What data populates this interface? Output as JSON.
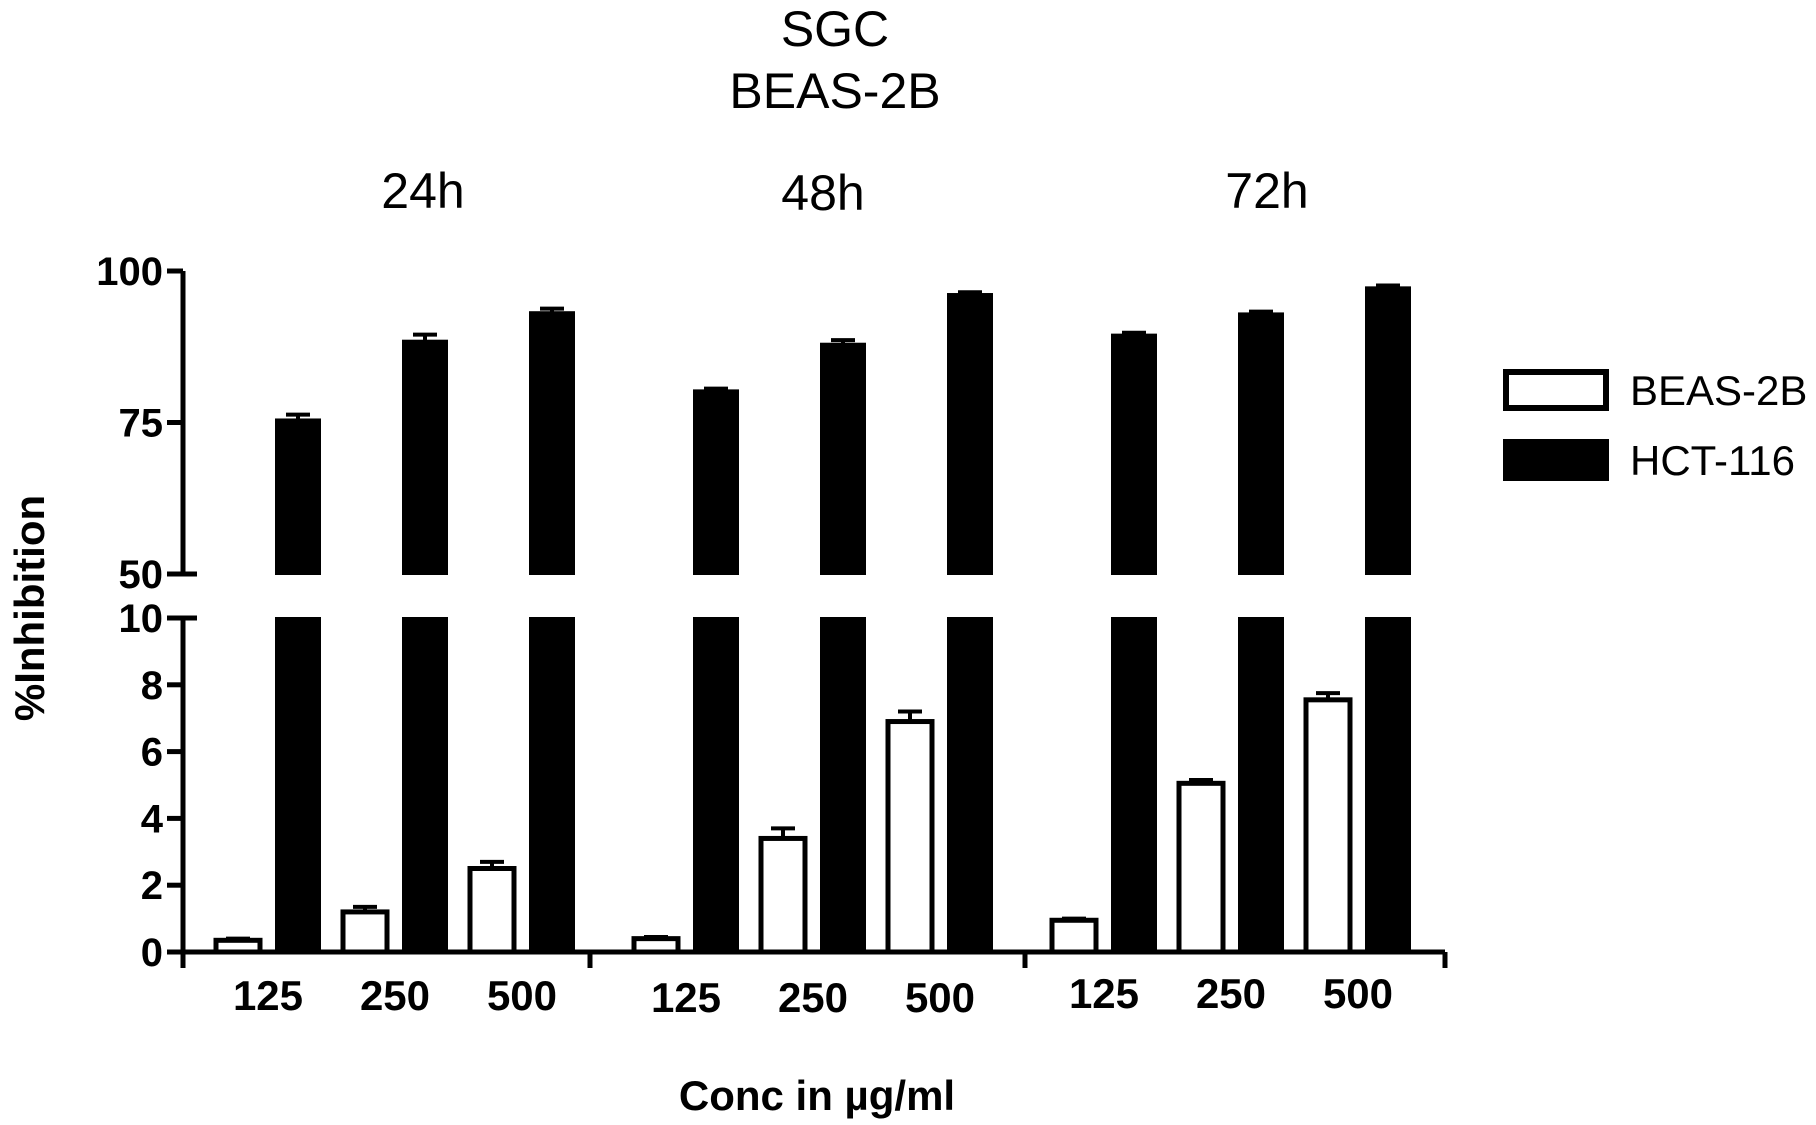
{
  "chart_data": {
    "type": "bar",
    "title": "SGC",
    "subtitle": "BEAS-2B",
    "xlabel": "Conc in µg/ml",
    "ylabel": "%Inhibition",
    "groups": [
      "24h",
      "48h",
      "72h"
    ],
    "categories": [
      "125",
      "250",
      "500"
    ],
    "series": [
      {
        "name": "BEAS-2B",
        "color": "#ffffff",
        "values": [
          [
            0.35,
            1.2,
            2.5
          ],
          [
            0.4,
            3.4,
            6.9
          ],
          [
            0.95,
            5.05,
            7.55
          ]
        ],
        "errors": [
          [
            0.05,
            0.15,
            0.2
          ],
          [
            0.05,
            0.3,
            0.3
          ],
          [
            0.05,
            0.1,
            0.2
          ]
        ]
      },
      {
        "name": "HCT-116",
        "color": "#000000",
        "values": [
          [
            75.5,
            88.5,
            93.2
          ],
          [
            80.3,
            88.0,
            96.2
          ],
          [
            89.5,
            93.0,
            97.3
          ]
        ],
        "errors": [
          [
            0.8,
            1.0,
            0.6
          ],
          [
            0.3,
            0.6,
            0.3
          ],
          [
            0.3,
            0.3,
            0.3
          ]
        ]
      }
    ],
    "y_axis_segments": [
      {
        "range": [
          0,
          10
        ],
        "ticks": [
          "0",
          "2",
          "4",
          "6",
          "8",
          "10"
        ]
      },
      {
        "range": [
          50,
          100
        ],
        "ticks": [
          "50",
          "75",
          "100"
        ]
      }
    ],
    "axis_break": true,
    "legend_position": "right",
    "grid": false
  }
}
